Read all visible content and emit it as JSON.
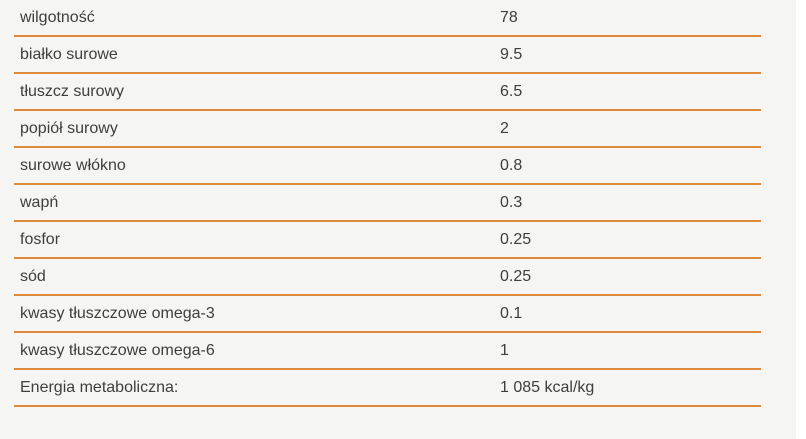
{
  "table": {
    "rows": [
      {
        "label": "wilgotność",
        "value": "78"
      },
      {
        "label": "białko surowe",
        "value": "9.5"
      },
      {
        "label": "tłuszcz surowy",
        "value": "6.5"
      },
      {
        "label": "popiół surowy",
        "value": "2"
      },
      {
        "label": "surowe włókno",
        "value": "0.8"
      },
      {
        "label": "wapń",
        "value": "0.3"
      },
      {
        "label": "fosfor",
        "value": "0.25"
      },
      {
        "label": "sód",
        "value": "0.25"
      },
      {
        "label": "kwasy tłuszczowe omega-3",
        "value": "0.1"
      },
      {
        "label": "kwasy tłuszczowe omega-6",
        "value": "1"
      },
      {
        "label": "Energia metaboliczna:",
        "value": "1 085 kcal/kg"
      }
    ]
  },
  "colors": {
    "divider": "#dd8a3c",
    "text": "#3e3e3e",
    "panel_background": "#f5f5f3",
    "page_background": "#ffffff"
  }
}
